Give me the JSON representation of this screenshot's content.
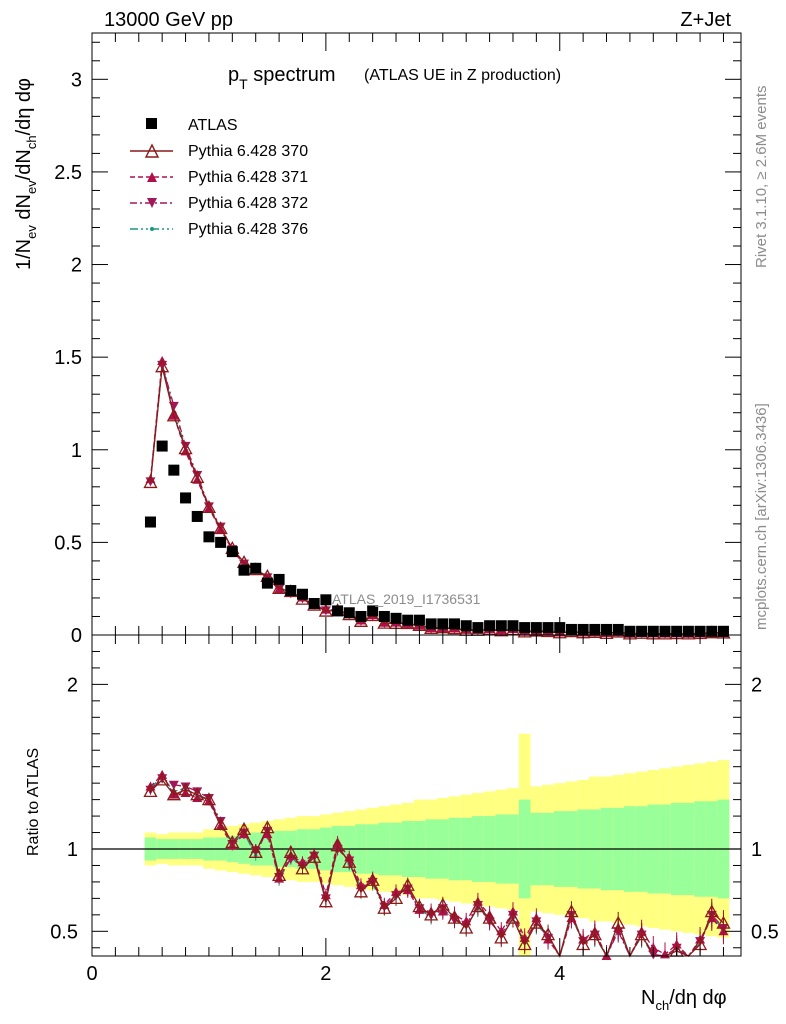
{
  "header": {
    "energy_label": "13000 GeV pp",
    "process_label": "Z+Jet",
    "title_main": "p",
    "title_sub": "T",
    "title_rest": " spectrum",
    "title_note": "(ATLAS UE in Z production)"
  },
  "side": {
    "rivet_label": "Rivet 3.1.10, ≥ 2.6M events",
    "mcplots_label": "mcplots.cern.ch [arXiv:1306.3436]"
  },
  "watermark": "ATLAS_2019_I1736531",
  "axes": {
    "ylabel_main": "1/N_ev dN_ev/dN_ch/dη dφ",
    "ylabel_ratio": "Ratio to ATLAS",
    "xlabel": "N_ch/dη dφ",
    "main_yticks": [
      "0",
      "0.5",
      "1",
      "1.5",
      "2",
      "2.5",
      "3"
    ],
    "ratio_yticks": [
      "0.5",
      "1",
      "2"
    ],
    "xticks": [
      "0",
      "2",
      "4"
    ]
  },
  "legend": {
    "data": "ATLAS",
    "s370": "Pythia 6.428 370",
    "s371": "Pythia 6.428 371",
    "s372": "Pythia 6.428 372",
    "s376": "Pythia 6.428 376"
  },
  "colors": {
    "data": "#000000",
    "s370": "#8b1a1a",
    "s371": "#b0104a",
    "s372": "#a0185a",
    "s376": "#1a9a7a",
    "band_inner": "#99ff99",
    "band_outer": "#ffff80"
  },
  "chart_data": {
    "type": "scatter",
    "xlim": [
      0,
      5.55
    ],
    "ylim_main": [
      0,
      3.25
    ],
    "ylim_ratio": [
      0.35,
      2.3
    ],
    "x": [
      0.5,
      0.6,
      0.7,
      0.8,
      0.9,
      1.0,
      1.1,
      1.2,
      1.3,
      1.4,
      1.5,
      1.6,
      1.7,
      1.8,
      1.9,
      2.0,
      2.1,
      2.2,
      2.3,
      2.4,
      2.5,
      2.6,
      2.7,
      2.8,
      2.9,
      3.0,
      3.1,
      3.2,
      3.3,
      3.4,
      3.5,
      3.6,
      3.7,
      3.8,
      3.9,
      4.0,
      4.1,
      4.2,
      4.3,
      4.4,
      4.5,
      4.6,
      4.7,
      4.8,
      4.9,
      5.0,
      5.1,
      5.2,
      5.3,
      5.4
    ],
    "data": [
      0.61,
      1.02,
      0.89,
      0.74,
      0.64,
      0.53,
      0.5,
      0.45,
      0.35,
      0.36,
      0.28,
      0.3,
      0.24,
      0.22,
      0.17,
      0.19,
      0.13,
      0.12,
      0.1,
      0.13,
      0.1,
      0.09,
      0.08,
      0.08,
      0.06,
      0.06,
      0.06,
      0.05,
      0.04,
      0.05,
      0.05,
      0.05,
      0.04,
      0.04,
      0.04,
      0.04,
      0.03,
      0.03,
      0.03,
      0.03,
      0.03,
      0.02,
      0.02,
      0.02,
      0.02,
      0.02,
      0.02,
      0.02,
      0.02,
      0.02
    ],
    "ratio": {
      "s370": [
        1.35,
        1.42,
        1.33,
        1.36,
        1.33,
        1.3,
        1.15,
        1.04,
        1.12,
        0.98,
        1.13,
        0.84,
        0.98,
        0.88,
        0.95,
        0.68,
        1.02,
        0.92,
        0.74,
        0.81,
        0.64,
        0.7,
        0.78,
        0.65,
        0.6,
        0.66,
        0.58,
        0.52,
        0.65,
        0.58,
        0.46,
        0.58,
        0.42,
        0.55,
        0.48,
        0.3,
        0.62,
        0.42,
        0.48,
        0.3,
        0.55,
        0.3,
        0.48,
        0.32,
        0.3,
        0.38,
        0.3,
        0.42,
        0.62,
        0.55
      ],
      "s371": [
        1.38,
        1.45,
        1.33,
        1.34,
        1.31,
        1.29,
        1.14,
        1.02,
        1.09,
        1.0,
        1.09,
        0.82,
        0.96,
        0.92,
        0.97,
        0.72,
        1.04,
        0.95,
        0.78,
        0.82,
        0.66,
        0.74,
        0.75,
        0.63,
        0.62,
        0.62,
        0.6,
        0.56,
        0.68,
        0.6,
        0.5,
        0.62,
        0.46,
        0.58,
        0.45,
        0.34,
        0.58,
        0.45,
        0.5,
        0.35,
        0.52,
        0.34,
        0.5,
        0.4,
        0.36,
        0.42,
        0.34,
        0.45,
        0.58,
        0.5
      ],
      "s372": [
        1.36,
        1.43,
        1.39,
        1.38,
        1.35,
        1.31,
        1.17,
        1.03,
        1.1,
        0.99,
        1.11,
        0.83,
        0.94,
        0.9,
        0.96,
        0.7,
        1.0,
        0.93,
        0.76,
        0.8,
        0.65,
        0.72,
        0.76,
        0.64,
        0.6,
        0.64,
        0.57,
        0.54,
        0.66,
        0.56,
        0.48,
        0.6,
        0.44,
        0.56,
        0.46,
        0.32,
        0.6,
        0.44,
        0.48,
        0.33,
        0.5,
        0.32,
        0.48,
        0.36,
        0.34,
        0.4,
        0.32,
        0.44,
        0.6,
        0.52
      ],
      "s376": [
        1.37,
        1.44,
        1.35,
        1.37,
        1.32,
        1.3,
        1.16,
        1.03,
        1.1,
        0.96,
        1.12,
        0.81,
        0.95,
        0.89,
        0.95,
        0.7,
        1.03,
        0.91,
        0.77,
        0.79,
        0.64,
        0.71,
        0.76,
        0.63,
        0.59,
        0.63,
        0.57,
        0.53,
        0.64,
        0.57,
        0.47,
        0.58,
        0.43,
        0.54,
        0.47,
        0.31,
        0.59,
        0.43,
        0.47,
        0.32,
        0.51,
        0.31,
        0.47,
        0.34,
        0.32,
        0.39,
        0.31,
        0.43,
        0.59,
        0.51
      ]
    },
    "band_inner_halfwidth": [
      0.07,
      0.06,
      0.06,
      0.06,
      0.06,
      0.07,
      0.07,
      0.08,
      0.09,
      0.1,
      0.1,
      0.11,
      0.11,
      0.12,
      0.12,
      0.13,
      0.14,
      0.14,
      0.15,
      0.15,
      0.16,
      0.16,
      0.17,
      0.17,
      0.18,
      0.18,
      0.19,
      0.19,
      0.2,
      0.2,
      0.21,
      0.21,
      0.3,
      0.22,
      0.22,
      0.23,
      0.23,
      0.24,
      0.24,
      0.25,
      0.25,
      0.26,
      0.26,
      0.27,
      0.27,
      0.28,
      0.28,
      0.29,
      0.29,
      0.3
    ],
    "band_outer_halfwidth": [
      0.1,
      0.09,
      0.1,
      0.1,
      0.1,
      0.12,
      0.13,
      0.14,
      0.15,
      0.16,
      0.17,
      0.18,
      0.19,
      0.2,
      0.2,
      0.21,
      0.22,
      0.23,
      0.24,
      0.25,
      0.26,
      0.27,
      0.28,
      0.3,
      0.3,
      0.31,
      0.32,
      0.33,
      0.34,
      0.35,
      0.36,
      0.37,
      0.7,
      0.38,
      0.39,
      0.4,
      0.41,
      0.42,
      0.44,
      0.44,
      0.45,
      0.46,
      0.47,
      0.48,
      0.49,
      0.5,
      0.51,
      0.52,
      0.53,
      0.54
    ],
    "ratio_reference": 1.0
  }
}
